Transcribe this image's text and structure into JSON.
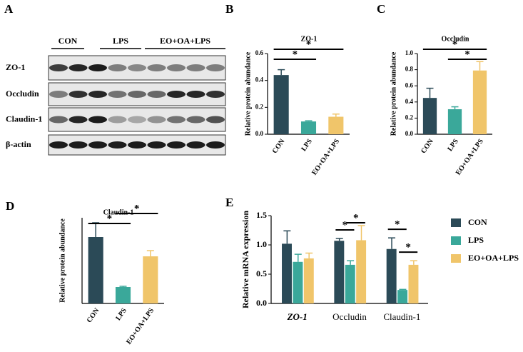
{
  "blot": {
    "panel_label": "A",
    "groups": [
      "CON",
      "LPS",
      "EO+OA+LPS"
    ],
    "rows": [
      "ZO-1",
      "Occludin",
      "Claudin-1",
      "β-actin"
    ]
  },
  "chart_data": [
    {
      "type": "bar",
      "panel_label": "B",
      "title": "ZO-1",
      "y_label": "Relative protein abundance",
      "categories": [
        "CON",
        "LPS",
        "EO+OA+LPS"
      ],
      "values": [
        0.44,
        0.095,
        0.13
      ],
      "errors": [
        0.04,
        0.005,
        0.02
      ],
      "colors": [
        "#2b4a57",
        "#3aa89a",
        "#f0c56a"
      ],
      "ylim": [
        0,
        0.6
      ],
      "yticks": [
        {
          "value": 0,
          "label": "0.0"
        },
        0.2,
        0.4,
        0.6
      ],
      "significance": [
        {
          "pair": [
            "CON",
            "LPS"
          ],
          "label": "*"
        },
        {
          "pair": [
            "CON",
            "EO+OA+LPS"
          ],
          "label": "*"
        }
      ]
    },
    {
      "type": "bar",
      "panel_label": "C",
      "title": "Occludin",
      "y_label": "Relative protein abundance",
      "categories": [
        "CON",
        "LPS",
        "EO+OA+LPS"
      ],
      "values": [
        0.45,
        0.31,
        0.79
      ],
      "errors": [
        0.12,
        0.03,
        0.11
      ],
      "colors": [
        "#2b4a57",
        "#3aa89a",
        "#f0c56a"
      ],
      "ylim": [
        0,
        1
      ],
      "yticks": [
        {
          "value": 0,
          "label": "0.0"
        },
        0.2,
        0.4,
        0.6,
        0.8,
        {
          "value": 1,
          "label": "1.0"
        }
      ],
      "significance": [
        {
          "pair": [
            "LPS",
            "EO+OA+LPS"
          ],
          "label": "*"
        },
        {
          "pair": [
            "CON",
            "EO+OA+LPS"
          ],
          "label": "*"
        }
      ]
    },
    {
      "type": "bar",
      "panel_label": "D",
      "title": "Claudin-1",
      "y_label": "Relative protein abundance",
      "categories": [
        "CON",
        "LPS",
        "EO+OA+LPS"
      ],
      "values": [
        0.93,
        0.23,
        0.66
      ],
      "errors": [
        0.2,
        0.01,
        0.08
      ],
      "colors": [
        "#2b4a57",
        "#3aa89a",
        "#f0c56a"
      ],
      "ylim": [
        0,
        1.2
      ],
      "yticks": [],
      "significance": [
        {
          "pair": [
            "CON",
            "LPS"
          ],
          "label": "*"
        },
        {
          "pair": [
            "LPS",
            "EO+OA+LPS"
          ],
          "label": "*"
        }
      ]
    },
    {
      "type": "grouped-bar",
      "panel_label": "E",
      "y_label": "Relative mRNA expression",
      "categories": [
        "ZO-1",
        "Occludin",
        "Claudin-1"
      ],
      "series": [
        {
          "name": "CON",
          "color": "#2b4a57",
          "values": [
            1.02,
            1.07,
            0.93
          ],
          "errors": [
            0.22,
            0.04,
            0.19
          ]
        },
        {
          "name": "LPS",
          "color": "#3aa89a",
          "values": [
            0.71,
            0.66,
            0.23
          ],
          "errors": [
            0.13,
            0.07,
            0.01
          ]
        },
        {
          "name": "EO+OA+LPS",
          "color": "#f0c56a",
          "values": [
            0.77,
            1.08,
            0.66
          ],
          "errors": [
            0.09,
            0.25,
            0.07
          ]
        }
      ],
      "ylim": [
        0,
        1.5
      ],
      "yticks": [
        {
          "value": 0,
          "label": "0.0"
        },
        0.5,
        {
          "value": 1,
          "label": "1.0"
        },
        1.5
      ],
      "legend": "right",
      "significance": [
        {
          "category": "Occludin",
          "pair": [
            "CON",
            "LPS"
          ],
          "label": "*"
        },
        {
          "category": "Occludin",
          "pair": [
            "LPS",
            "EO+OA+LPS"
          ],
          "label": "*"
        },
        {
          "category": "Claudin-1",
          "pair": [
            "CON",
            "LPS"
          ],
          "label": "*"
        },
        {
          "category": "Claudin-1",
          "pair": [
            "LPS",
            "EO+OA+LPS"
          ],
          "label": "*"
        }
      ]
    }
  ]
}
